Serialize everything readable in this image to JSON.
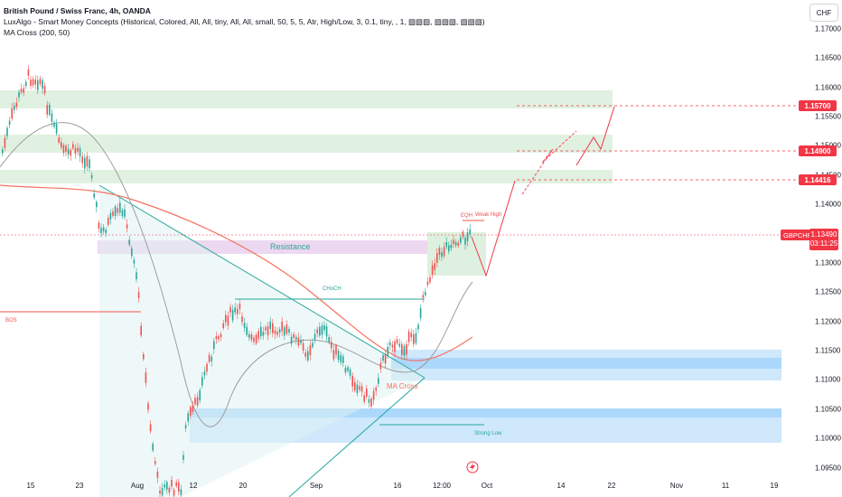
{
  "legend": {
    "symbol_line": "British Pound / Swiss Franc, 4h, OANDA",
    "indicator1": "LuxAlgo - Smart Money Concepts (Historical, Colored, All, All, tiny, All, All, small, 50, 5, 5, Atr, High/Low, 3, 0.1, tiny, , 1, ▧▧▧, ▧▧▧, ▧▧▧)",
    "indicator2": "MA Cross (200, 50)"
  },
  "currency_button": "CHF",
  "price_ticks": [
    "1.17000",
    "1.16500",
    "1.16000",
    "1.15500",
    "1.15000",
    "1.14500",
    "1.14000",
    "1.13000",
    "1.12500",
    "1.12000",
    "1.11500",
    "1.11000",
    "1.10500",
    "1.10000",
    "1.09500"
  ],
  "date_ticks": [
    "15",
    "23",
    "Aug",
    "12",
    "20",
    "Sep",
    "16",
    "12:00",
    "Oct",
    "14",
    "22",
    "Nov",
    "11",
    "19"
  ],
  "price_tags": [
    "1.15700",
    "1.14900",
    "1.14416"
  ],
  "current": {
    "symbol": "GBPCHF",
    "price": "1.13490",
    "countdown": "03:11:25"
  },
  "annotations": {
    "resistance": "Resistance",
    "choch": "CHoCH",
    "ma_cross": "MA Cross",
    "bos_left": "BOS",
    "weak_high": "Weak High",
    "strong_low": "Strong Low",
    "eqh": "EQH"
  },
  "colors": {
    "up": "#26a69a",
    "down": "#ef5350",
    "ma200": "#f4735f",
    "ma50": "#9e9e9e",
    "tag": "#f23645"
  }
}
